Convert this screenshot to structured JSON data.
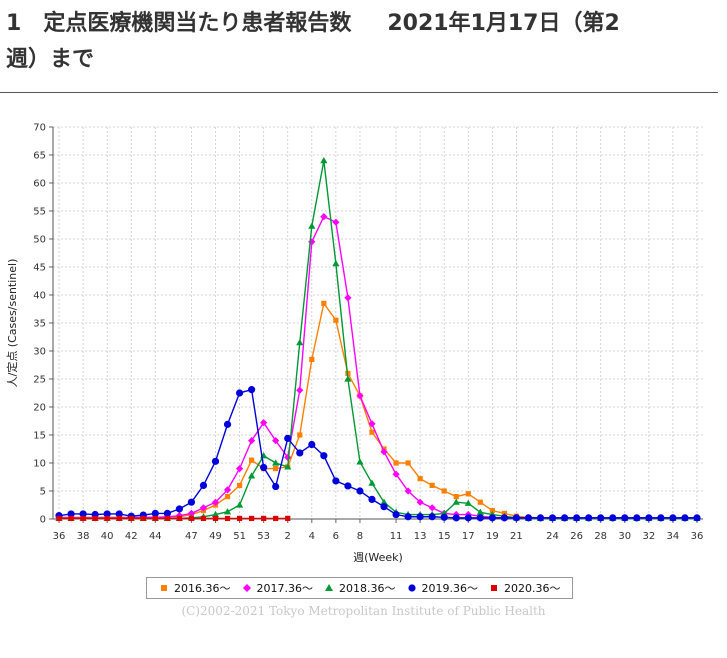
{
  "heading": {
    "number": "1",
    "title": "定点医療機関当たり患者報告数",
    "date": "2021年1月17日（第2",
    "line2": "週）まで"
  },
  "copyright": "(C)2002-2021 Tokyo Metropolitan Institute of Public Health",
  "chart_data": {
    "type": "line",
    "title": "",
    "xlabel": "週(Week)",
    "ylabel": "人/定点 (Cases/sentinel)",
    "ylim": [
      0,
      70
    ],
    "yticks": [
      0,
      5,
      10,
      15,
      20,
      25,
      30,
      35,
      40,
      45,
      50,
      55,
      60,
      65,
      70
    ],
    "grid": true,
    "legend_position": "bottom",
    "x_ticks": [
      "36",
      "38",
      "40",
      "42",
      "44",
      "47",
      "49",
      "51",
      "53",
      "2",
      "4",
      "6",
      "8",
      "11",
      "13",
      "15",
      "17",
      "19",
      "21",
      "24",
      "26",
      "28",
      "30",
      "32",
      "34",
      "36"
    ],
    "x_tick_index": [
      0,
      2,
      4,
      6,
      8,
      11,
      13,
      15,
      17,
      19,
      21,
      23,
      25,
      28,
      30,
      32,
      34,
      36,
      38,
      41,
      43,
      45,
      47,
      49,
      51,
      53
    ],
    "n_points": 54,
    "series": [
      {
        "name": "2016.36～",
        "color": "#ff8000",
        "marker": "square",
        "values": [
          0.3,
          0.3,
          0.3,
          0.3,
          0.3,
          0.3,
          0.3,
          0.3,
          0.3,
          0.3,
          0.4,
          0.8,
          1.5,
          2.5,
          4,
          6,
          10.5,
          9,
          9,
          9.3,
          15,
          28.5,
          38.5,
          35.5,
          26,
          22,
          15.5,
          12.5,
          10,
          10,
          7.2,
          6,
          5,
          4,
          4.5,
          3,
          1.5,
          1,
          0.5,
          0.3,
          0.2,
          0.2,
          0.2,
          0.2,
          0.2,
          0.2,
          0.2,
          0.2,
          0.2,
          0.2,
          0.2,
          0.2,
          0.2,
          0.2
        ]
      },
      {
        "name": "2017.36～",
        "color": "#ff00ff",
        "marker": "diamond",
        "values": [
          0.2,
          0.2,
          0.2,
          0.2,
          0.2,
          0.2,
          0.2,
          0.3,
          0.3,
          0.4,
          0.6,
          1,
          2,
          3,
          5.2,
          9,
          14,
          17.2,
          14,
          11,
          23,
          49.5,
          54,
          53,
          39.5,
          22,
          17,
          12,
          8,
          5,
          3,
          2,
          1,
          0.8,
          0.8,
          0.5,
          0.3,
          0.2,
          0.2,
          0.2,
          0.2,
          0.2,
          0.2,
          0.2,
          0.2,
          0.2,
          0.2,
          0.2,
          0.2,
          0.2,
          0.2,
          0.2,
          0.2,
          0.2
        ]
      },
      {
        "name": "2018.36～",
        "color": "#009933",
        "marker": "triangle",
        "values": [
          0.1,
          0.1,
          0.1,
          0.1,
          0.1,
          0.1,
          0.1,
          0.1,
          0.1,
          0.1,
          0.1,
          0.2,
          0.4,
          0.8,
          1.3,
          2.5,
          7.7,
          11.3,
          10,
          9.3,
          31.5,
          52.3,
          64,
          45.6,
          25,
          10.2,
          6.4,
          3,
          1.2,
          0.8,
          0.8,
          0.8,
          1,
          3,
          2.8,
          1.2,
          0.8,
          0.5,
          0.2,
          0.1,
          0.1,
          0.1,
          0.1,
          0.1,
          0.1,
          0.1,
          0.1,
          0.1,
          0.1,
          0.1,
          0.1,
          0.1,
          0.1,
          0.1
        ]
      },
      {
        "name": "2019.36～",
        "color": "#0000dd",
        "marker": "circle",
        "values": [
          0.6,
          0.9,
          0.9,
          0.8,
          0.9,
          0.9,
          0.5,
          0.7,
          1,
          1,
          1.8,
          3,
          6,
          10.3,
          16.9,
          22.5,
          23.1,
          9.2,
          5.8,
          14.4,
          11.8,
          13.3,
          11.3,
          6.8,
          5.9,
          5,
          3.5,
          2.2,
          0.8,
          0.4,
          0.4,
          0.4,
          0.3,
          0.2,
          0.2,
          0.2,
          0.2,
          0.2,
          0.2,
          0.2,
          0.2,
          0.2,
          0.2,
          0.2,
          0.2,
          0.2,
          0.2,
          0.2,
          0.2,
          0.2,
          0.2,
          0.2,
          0.2,
          0.2
        ]
      },
      {
        "name": "2020.36～",
        "color": "#dd0000",
        "marker": "square",
        "values": [
          0.1,
          0.1,
          0.1,
          0.1,
          0.1,
          0.1,
          0.1,
          0.1,
          0.1,
          0.1,
          0.1,
          0.1,
          0.1,
          0.1,
          0.1,
          0.1,
          0.1,
          0.1,
          0.1,
          0.1
        ]
      }
    ]
  }
}
